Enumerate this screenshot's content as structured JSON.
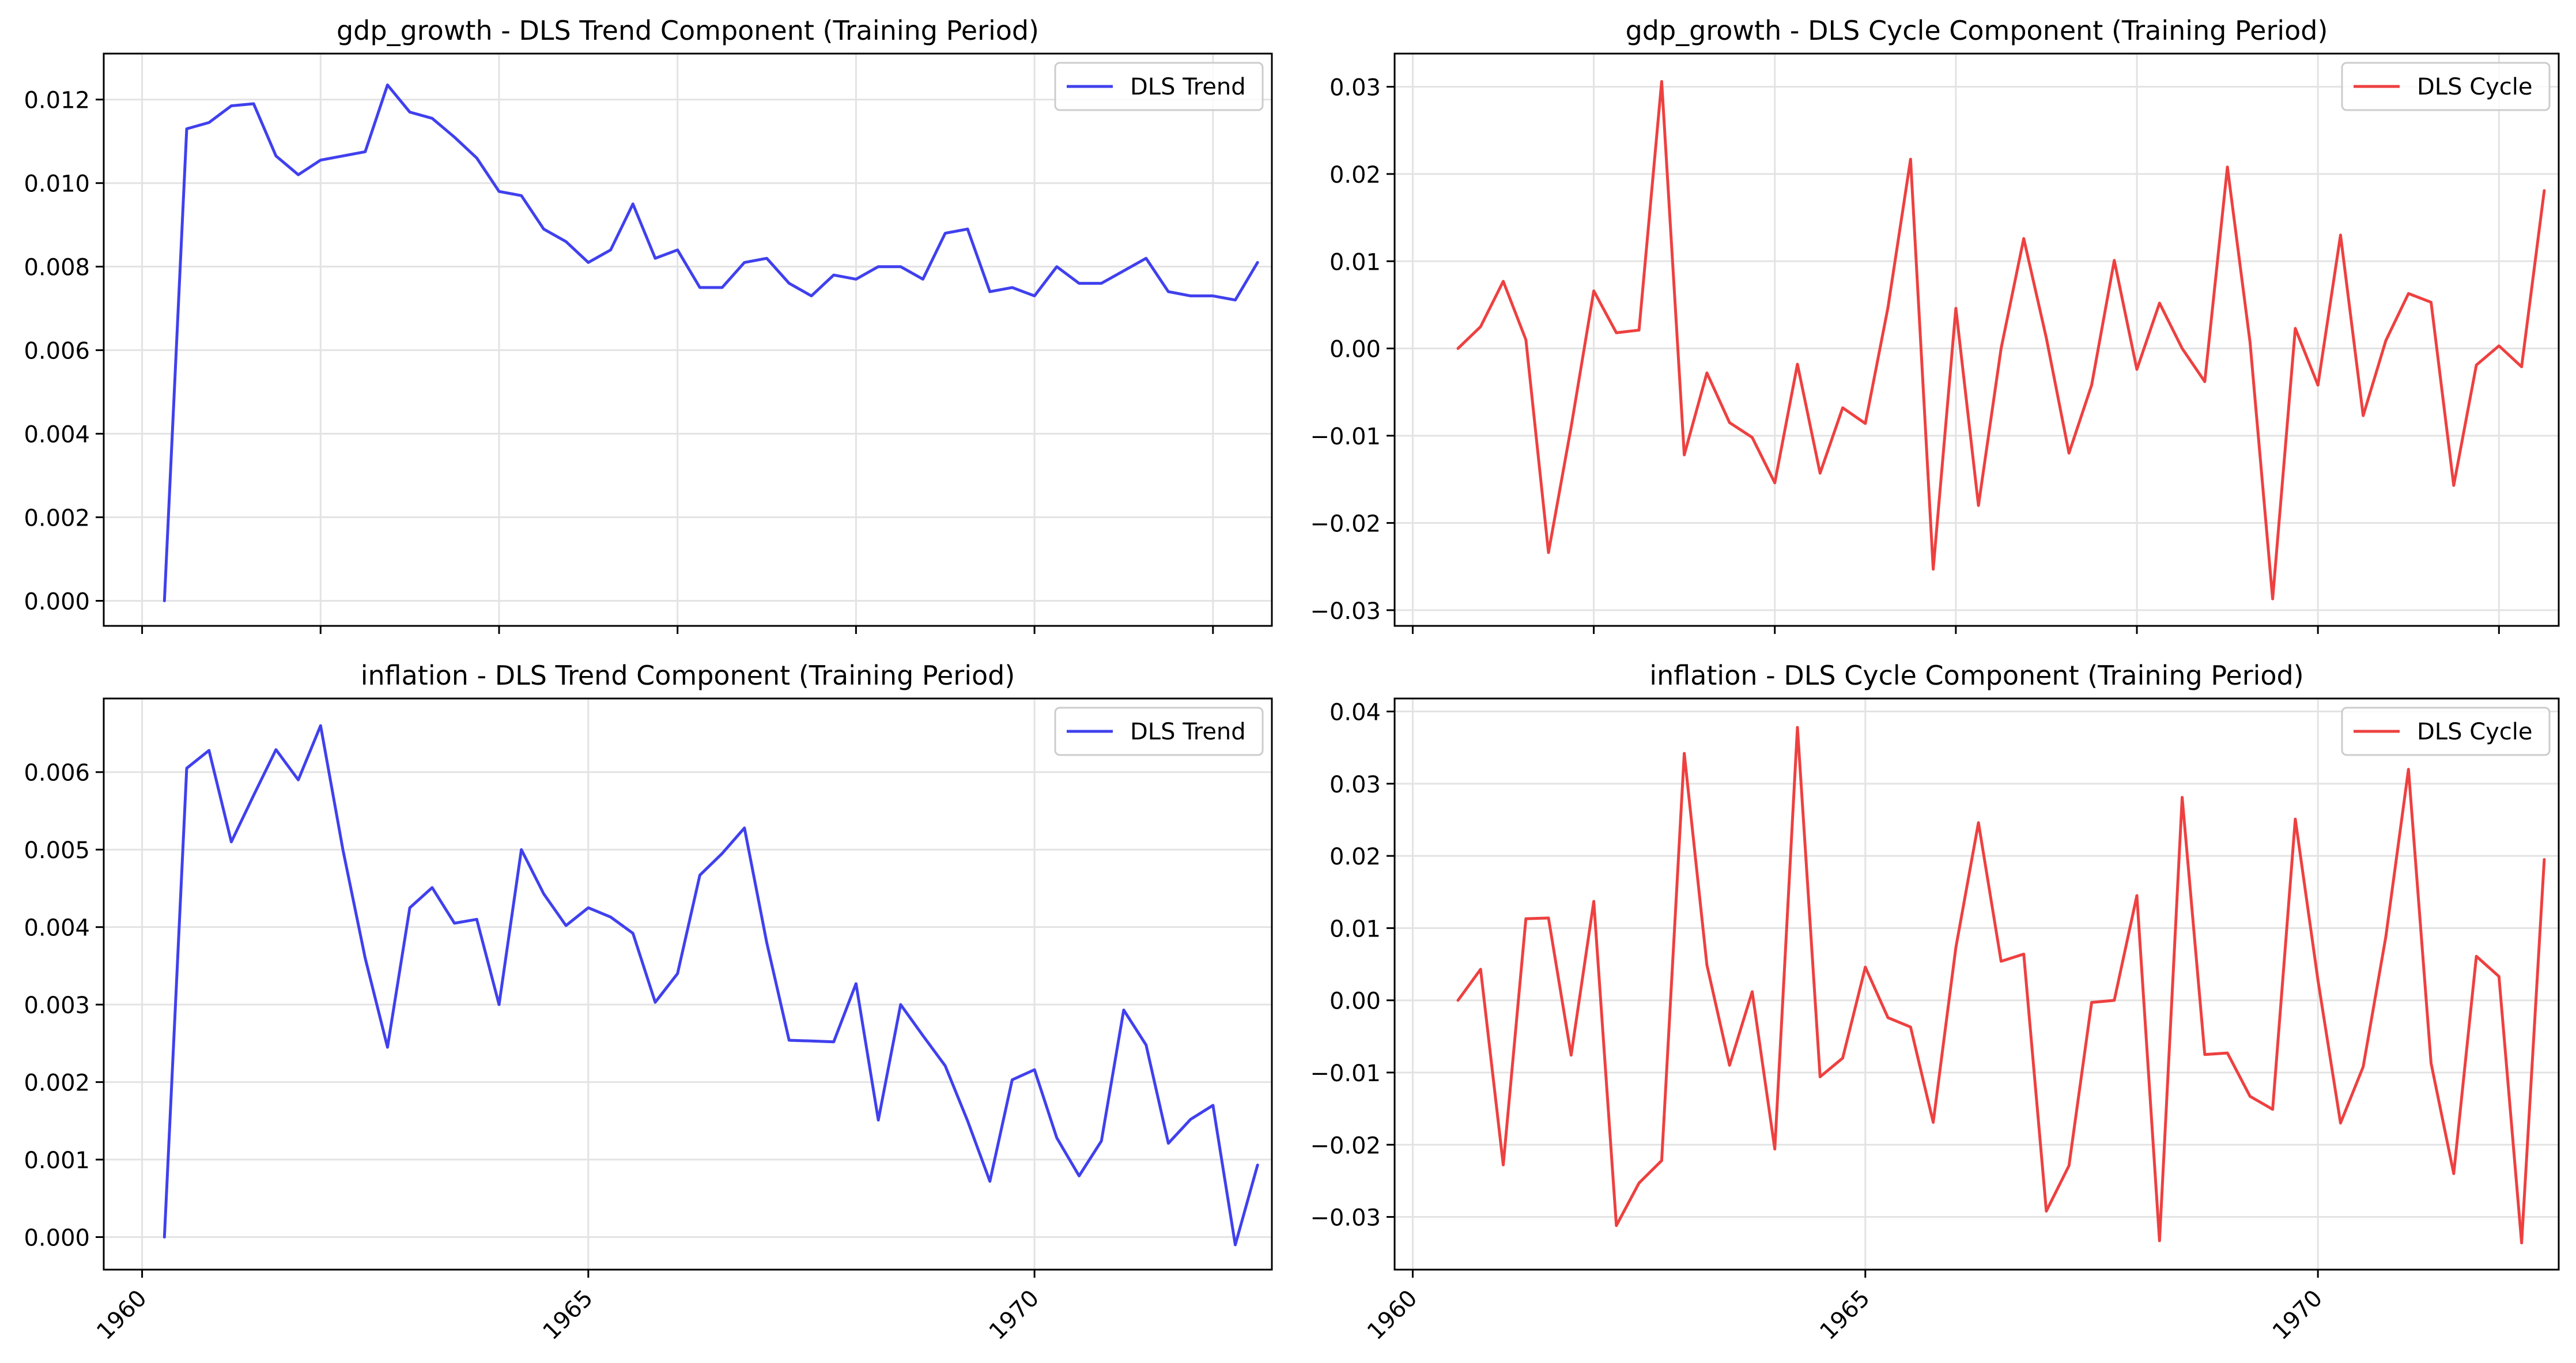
{
  "chart_data": [
    {
      "type": "line",
      "title": "gdp_growth - DLS Trend Component (Training Period)",
      "xlabel": "",
      "ylabel": "",
      "xlim": [
        1959.57,
        1972.66
      ],
      "ylim": [
        -0.0006,
        0.0131
      ],
      "x_ticks": [
        {
          "value": 1960,
          "label": ""
        },
        {
          "value": 1962,
          "label": ""
        },
        {
          "value": 1964,
          "label": ""
        },
        {
          "value": 1966,
          "label": ""
        },
        {
          "value": 1968,
          "label": ""
        },
        {
          "value": 1970,
          "label": ""
        },
        {
          "value": 1972,
          "label": ""
        }
      ],
      "y_ticks": [
        {
          "value": 0.0,
          "label": "0.000"
        },
        {
          "value": 0.002,
          "label": "0.002"
        },
        {
          "value": 0.004,
          "label": "0.004"
        },
        {
          "value": 0.006,
          "label": "0.006"
        },
        {
          "value": 0.008,
          "label": "0.008"
        },
        {
          "value": 0.01,
          "label": "0.010"
        },
        {
          "value": 0.012,
          "label": "0.012"
        }
      ],
      "grid": true,
      "legend": "upper-right",
      "series": [
        {
          "name": "DLS Trend",
          "color": "#4040ee",
          "x": [
            1960.25,
            1960.5,
            1960.75,
            1961.0,
            1961.25,
            1961.5,
            1961.75,
            1962.0,
            1962.25,
            1962.5,
            1962.75,
            1963.0,
            1963.25,
            1963.5,
            1963.75,
            1964.0,
            1964.25,
            1964.5,
            1964.75,
            1965.0,
            1965.25,
            1965.5,
            1965.75,
            1966.0,
            1966.25,
            1966.5,
            1966.75,
            1967.0,
            1967.25,
            1967.5,
            1967.75,
            1968.0,
            1968.25,
            1968.5,
            1968.75,
            1969.0,
            1969.25,
            1969.5,
            1969.75,
            1970.0,
            1970.25,
            1970.5,
            1970.75,
            1971.0,
            1971.25,
            1971.5,
            1971.75,
            1972.0,
            1972.25,
            1972.5
          ],
          "y": [
            0.0,
            0.0113,
            0.01145,
            0.01185,
            0.0119,
            0.01065,
            0.0102,
            0.01055,
            0.01065,
            0.01075,
            0.01235,
            0.0117,
            0.01155,
            0.0111,
            0.0106,
            0.0098,
            0.0097,
            0.0089,
            0.0086,
            0.0081,
            0.0084,
            0.0095,
            0.0082,
            0.0084,
            0.0075,
            0.0075,
            0.0081,
            0.0082,
            0.0076,
            0.0073,
            0.0078,
            0.0077,
            0.008,
            0.008,
            0.0077,
            0.0088,
            0.0089,
            0.0074,
            0.0075,
            0.0073,
            0.008,
            0.0076,
            0.0076,
            0.0079,
            0.0082,
            0.0074,
            0.0073,
            0.0073,
            0.0072,
            0.0081
          ]
        }
      ]
    },
    {
      "type": "line",
      "title": "gdp_growth - DLS Cycle Component (Training Period)",
      "xlabel": "",
      "ylabel": "",
      "xlim": [
        1959.8,
        1972.66
      ],
      "ylim": [
        -0.0318,
        0.0338
      ],
      "x_ticks": [
        {
          "value": 1960,
          "label": ""
        },
        {
          "value": 1962,
          "label": ""
        },
        {
          "value": 1964,
          "label": ""
        },
        {
          "value": 1966,
          "label": ""
        },
        {
          "value": 1968,
          "label": ""
        },
        {
          "value": 1970,
          "label": ""
        },
        {
          "value": 1972,
          "label": ""
        }
      ],
      "y_ticks": [
        {
          "value": -0.03,
          "label": "−0.03"
        },
        {
          "value": -0.02,
          "label": "−0.02"
        },
        {
          "value": -0.01,
          "label": "−0.01"
        },
        {
          "value": 0.0,
          "label": "0.00"
        },
        {
          "value": 0.01,
          "label": "0.01"
        },
        {
          "value": 0.02,
          "label": "0.02"
        },
        {
          "value": 0.03,
          "label": "0.03"
        }
      ],
      "grid": true,
      "legend": "upper-right",
      "series": [
        {
          "name": "DLS Cycle",
          "color": "#ee4040",
          "x": [
            1960.5,
            1960.75,
            1961.0,
            1961.25,
            1961.5,
            1961.75,
            1962.0,
            1962.25,
            1962.5,
            1962.75,
            1963.0,
            1963.25,
            1963.5,
            1963.75,
            1964.0,
            1964.25,
            1964.5,
            1964.75,
            1965.0,
            1965.25,
            1965.5,
            1965.75,
            1966.0,
            1966.25,
            1966.5,
            1966.75,
            1967.0,
            1967.25,
            1967.5,
            1967.75,
            1968.0,
            1968.25,
            1968.5,
            1968.75,
            1969.0,
            1969.25,
            1969.5,
            1969.75,
            1970.0,
            1970.25,
            1970.5,
            1970.75,
            1971.0,
            1971.25,
            1971.5,
            1971.75,
            1972.0,
            1972.25,
            1972.5
          ],
          "y": [
            0.0,
            0.0025,
            0.0077,
            0.001,
            -0.0234,
            -0.009,
            0.0066,
            0.0018,
            0.0021,
            0.0306,
            -0.0122,
            -0.0028,
            -0.0085,
            -0.0102,
            -0.0154,
            -0.0018,
            -0.0143,
            -0.0068,
            -0.0086,
            0.0047,
            0.0217,
            -0.0253,
            0.0046,
            -0.018,
            0.0,
            0.0126,
            0.0012,
            -0.012,
            -0.0042,
            0.0101,
            -0.0024,
            0.0052,
            0.0,
            -0.0038,
            0.0208,
            0.0007,
            -0.0287,
            0.0023,
            -0.0042,
            0.013,
            -0.0077,
            0.0009,
            0.0063,
            0.0053,
            -0.0157,
            -0.0019,
            0.0003,
            -0.0021,
            0.0181
          ]
        }
      ]
    },
    {
      "type": "line",
      "title": "inflation - DLS Trend Component (Training Period)",
      "xlabel": "",
      "ylabel": "",
      "xlim": [
        1959.57,
        1972.66
      ],
      "ylim": [
        -0.00042,
        0.00695
      ],
      "x_ticks": [
        {
          "value": 1960,
          "label": "1960"
        },
        {
          "value": 1965,
          "label": "1965"
        },
        {
          "value": 1970,
          "label": "1970"
        }
      ],
      "y_ticks": [
        {
          "value": 0.0,
          "label": "0.000"
        },
        {
          "value": 0.001,
          "label": "0.001"
        },
        {
          "value": 0.002,
          "label": "0.002"
        },
        {
          "value": 0.003,
          "label": "0.003"
        },
        {
          "value": 0.004,
          "label": "0.004"
        },
        {
          "value": 0.005,
          "label": "0.005"
        },
        {
          "value": 0.006,
          "label": "0.006"
        }
      ],
      "grid": true,
      "legend": "upper-right",
      "series": [
        {
          "name": "DLS Trend",
          "color": "#4040ee",
          "x": [
            1960.25,
            1960.5,
            1960.75,
            1961.0,
            1961.25,
            1961.5,
            1961.75,
            1962.0,
            1962.25,
            1962.5,
            1962.75,
            1963.0,
            1963.25,
            1963.5,
            1963.75,
            1964.0,
            1964.25,
            1964.5,
            1964.75,
            1965.0,
            1965.25,
            1965.5,
            1965.75,
            1966.0,
            1966.25,
            1966.5,
            1966.75,
            1967.0,
            1967.25,
            1967.5,
            1967.75,
            1968.0,
            1968.25,
            1968.5,
            1968.75,
            1969.0,
            1969.25,
            1969.5,
            1969.75,
            1970.0,
            1970.25,
            1970.5,
            1970.75,
            1971.0,
            1971.25,
            1971.5,
            1971.75,
            1972.0,
            1972.25,
            1972.5
          ],
          "y": [
            0.0,
            0.00605,
            0.00628,
            0.0051,
            0.0057,
            0.00629,
            0.0059,
            0.0066,
            0.005,
            0.0036,
            0.00245,
            0.00425,
            0.00451,
            0.00405,
            0.0041,
            0.003,
            0.005,
            0.00443,
            0.00402,
            0.00425,
            0.00413,
            0.00392,
            0.00303,
            0.0034,
            0.00467,
            0.00495,
            0.00528,
            0.0038,
            0.00254,
            0.00253,
            0.00252,
            0.00327,
            0.00151,
            0.003,
            0.0026,
            0.00221,
            0.0015,
            0.00072,
            0.00203,
            0.00216,
            0.00128,
            0.00079,
            0.00124,
            0.00293,
            0.00248,
            0.00121,
            0.00152,
            0.0017,
            -0.0001,
            0.00093
          ]
        }
      ]
    },
    {
      "type": "line",
      "title": "inflation - DLS Cycle Component (Training Period)",
      "xlabel": "",
      "ylabel": "",
      "xlim": [
        1959.8,
        1972.66
      ],
      "ylim": [
        -0.0373,
        0.0418
      ],
      "x_ticks": [
        {
          "value": 1960,
          "label": "1960"
        },
        {
          "value": 1965,
          "label": "1965"
        },
        {
          "value": 1970,
          "label": "1970"
        }
      ],
      "y_ticks": [
        {
          "value": -0.03,
          "label": "−0.03"
        },
        {
          "value": -0.02,
          "label": "−0.02"
        },
        {
          "value": -0.01,
          "label": "−0.01"
        },
        {
          "value": 0.0,
          "label": "0.00"
        },
        {
          "value": 0.01,
          "label": "0.01"
        },
        {
          "value": 0.02,
          "label": "0.02"
        },
        {
          "value": 0.03,
          "label": "0.03"
        },
        {
          "value": 0.04,
          "label": "0.04"
        }
      ],
      "grid": true,
      "legend": "upper-right",
      "series": [
        {
          "name": "DLS Cycle",
          "color": "#ee4040",
          "x": [
            1960.5,
            1960.75,
            1961.0,
            1961.25,
            1961.5,
            1961.75,
            1962.0,
            1962.25,
            1962.5,
            1962.75,
            1963.0,
            1963.25,
            1963.5,
            1963.75,
            1964.0,
            1964.25,
            1964.5,
            1964.75,
            1965.0,
            1965.25,
            1965.5,
            1965.75,
            1966.0,
            1966.25,
            1966.5,
            1966.75,
            1967.0,
            1967.25,
            1967.5,
            1967.75,
            1968.0,
            1968.25,
            1968.5,
            1968.75,
            1969.0,
            1969.25,
            1969.5,
            1969.75,
            1970.0,
            1970.25,
            1970.5,
            1970.75,
            1971.0,
            1971.25,
            1971.5,
            1971.75,
            1972.0,
            1972.25,
            1972.5
          ],
          "y": [
            0.0,
            0.0043,
            -0.0228,
            0.0113,
            0.0114,
            -0.0076,
            0.0137,
            -0.0312,
            -0.0253,
            -0.0222,
            0.0342,
            0.0049,
            -0.009,
            0.0012,
            -0.0206,
            0.0378,
            -0.0106,
            -0.008,
            0.0046,
            -0.0024,
            -0.0037,
            -0.0169,
            0.0073,
            0.0246,
            0.0054,
            0.0064,
            -0.0292,
            -0.0229,
            -0.0003,
            0.0,
            0.0145,
            -0.0333,
            0.0281,
            -0.0075,
            -0.0073,
            -0.0133,
            -0.0151,
            0.0251,
            0.0028,
            -0.017,
            -0.0092,
            0.0088,
            0.032,
            -0.0087,
            -0.024,
            0.0061,
            0.0033,
            -0.0336,
            0.0195
          ]
        }
      ]
    }
  ]
}
